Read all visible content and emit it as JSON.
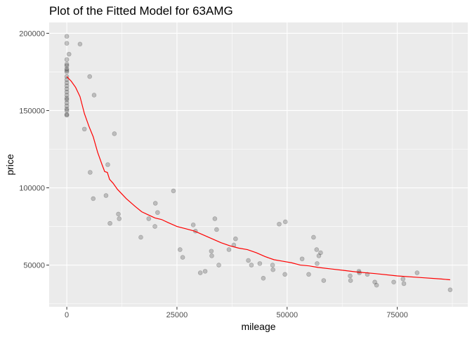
{
  "chart_data": {
    "type": "scatter",
    "title": "Plot of the Fitted Model for 63AMG",
    "xlabel": "mileage",
    "ylabel": "price",
    "xlim": [
      -4000,
      91000
    ],
    "ylim": [
      23000,
      207000
    ],
    "x_ticks": [
      0,
      25000,
      50000,
      75000
    ],
    "x_tick_labels": [
      "0",
      "25000",
      "50000",
      "75000"
    ],
    "y_ticks": [
      50000,
      100000,
      150000,
      200000
    ],
    "y_tick_labels": [
      "50000",
      "100000",
      "150000",
      "200000"
    ],
    "grid": true,
    "legend": "none",
    "colors": {
      "panel": "#ebebeb",
      "grid_major": "#ffffff",
      "points": "#000000",
      "fitted_line": "#ff0000"
    },
    "points": [
      {
        "x": 0,
        "y": 198000
      },
      {
        "x": 0,
        "y": 193500
      },
      {
        "x": 0,
        "y": 183000
      },
      {
        "x": 0,
        "y": 180000
      },
      {
        "x": 0,
        "y": 179000
      },
      {
        "x": 0,
        "y": 177000
      },
      {
        "x": 0,
        "y": 176000
      },
      {
        "x": 0,
        "y": 175000
      },
      {
        "x": 0,
        "y": 172000
      },
      {
        "x": 0,
        "y": 170000
      },
      {
        "x": 0,
        "y": 168000
      },
      {
        "x": 0,
        "y": 166000
      },
      {
        "x": 0,
        "y": 164000
      },
      {
        "x": 0,
        "y": 162000
      },
      {
        "x": 0,
        "y": 160000
      },
      {
        "x": 0,
        "y": 158000
      },
      {
        "x": 0,
        "y": 157000
      },
      {
        "x": 0,
        "y": 155000
      },
      {
        "x": 0,
        "y": 153000
      },
      {
        "x": 0,
        "y": 151000
      },
      {
        "x": 0,
        "y": 150000
      },
      {
        "x": 0,
        "y": 147500
      },
      {
        "x": 0,
        "y": 147000
      },
      {
        "x": 500,
        "y": 186500
      },
      {
        "x": 3000,
        "y": 193000
      },
      {
        "x": 4000,
        "y": 138000
      },
      {
        "x": 5200,
        "y": 172000
      },
      {
        "x": 5300,
        "y": 110000
      },
      {
        "x": 6000,
        "y": 93000
      },
      {
        "x": 6200,
        "y": 160000
      },
      {
        "x": 8900,
        "y": 95000
      },
      {
        "x": 9300,
        "y": 115000
      },
      {
        "x": 9800,
        "y": 77000
      },
      {
        "x": 10800,
        "y": 135000
      },
      {
        "x": 11700,
        "y": 83000
      },
      {
        "x": 11900,
        "y": 80000
      },
      {
        "x": 16800,
        "y": 68000
      },
      {
        "x": 18600,
        "y": 80000
      },
      {
        "x": 20000,
        "y": 75000
      },
      {
        "x": 20100,
        "y": 90000
      },
      {
        "x": 20600,
        "y": 84000
      },
      {
        "x": 24200,
        "y": 98000
      },
      {
        "x": 25700,
        "y": 60000
      },
      {
        "x": 26300,
        "y": 55000
      },
      {
        "x": 28700,
        "y": 76000
      },
      {
        "x": 29200,
        "y": 72000
      },
      {
        "x": 30300,
        "y": 45000
      },
      {
        "x": 31400,
        "y": 46000
      },
      {
        "x": 32800,
        "y": 59000
      },
      {
        "x": 32900,
        "y": 56000
      },
      {
        "x": 33600,
        "y": 80000
      },
      {
        "x": 34000,
        "y": 73000
      },
      {
        "x": 34500,
        "y": 50000
      },
      {
        "x": 36800,
        "y": 60000
      },
      {
        "x": 37900,
        "y": 63000
      },
      {
        "x": 38300,
        "y": 67000
      },
      {
        "x": 41200,
        "y": 53000
      },
      {
        "x": 41900,
        "y": 50000
      },
      {
        "x": 43800,
        "y": 51000
      },
      {
        "x": 44600,
        "y": 41500
      },
      {
        "x": 46700,
        "y": 50000
      },
      {
        "x": 46800,
        "y": 47000
      },
      {
        "x": 48200,
        "y": 76500
      },
      {
        "x": 49500,
        "y": 44000
      },
      {
        "x": 49600,
        "y": 78000
      },
      {
        "x": 53400,
        "y": 54000
      },
      {
        "x": 54900,
        "y": 44000
      },
      {
        "x": 56000,
        "y": 68000
      },
      {
        "x": 56700,
        "y": 60000
      },
      {
        "x": 56800,
        "y": 51000
      },
      {
        "x": 57200,
        "y": 56000
      },
      {
        "x": 57600,
        "y": 58000
      },
      {
        "x": 58300,
        "y": 40000
      },
      {
        "x": 64300,
        "y": 43000
      },
      {
        "x": 64400,
        "y": 40000
      },
      {
        "x": 66300,
        "y": 46000
      },
      {
        "x": 66400,
        "y": 45000
      },
      {
        "x": 68200,
        "y": 44000
      },
      {
        "x": 69900,
        "y": 39000
      },
      {
        "x": 70300,
        "y": 37000
      },
      {
        "x": 74200,
        "y": 39000
      },
      {
        "x": 76300,
        "y": 41000
      },
      {
        "x": 76500,
        "y": 38000
      },
      {
        "x": 79500,
        "y": 45000
      },
      {
        "x": 87000,
        "y": 34000
      }
    ],
    "fitted_line": [
      {
        "x": 0,
        "y": 172000
      },
      {
        "x": 1000,
        "y": 169000
      },
      {
        "x": 2000,
        "y": 165000
      },
      {
        "x": 3000,
        "y": 159000
      },
      {
        "x": 4000,
        "y": 148000
      },
      {
        "x": 5000,
        "y": 140000
      },
      {
        "x": 6000,
        "y": 133000
      },
      {
        "x": 7000,
        "y": 123000
      },
      {
        "x": 8000,
        "y": 115000
      },
      {
        "x": 8600,
        "y": 110500
      },
      {
        "x": 9200,
        "y": 110000
      },
      {
        "x": 9700,
        "y": 105500
      },
      {
        "x": 10500,
        "y": 103000
      },
      {
        "x": 11500,
        "y": 99000
      },
      {
        "x": 13500,
        "y": 93000
      },
      {
        "x": 15500,
        "y": 88000
      },
      {
        "x": 17000,
        "y": 84500
      },
      {
        "x": 18500,
        "y": 82500
      },
      {
        "x": 20000,
        "y": 80500
      },
      {
        "x": 21500,
        "y": 79500
      },
      {
        "x": 23000,
        "y": 77500
      },
      {
        "x": 25000,
        "y": 75000
      },
      {
        "x": 27000,
        "y": 73500
      },
      {
        "x": 29000,
        "y": 72000
      },
      {
        "x": 31000,
        "y": 69500
      },
      {
        "x": 33000,
        "y": 67000
      },
      {
        "x": 35000,
        "y": 64500
      },
      {
        "x": 37000,
        "y": 62500
      },
      {
        "x": 39000,
        "y": 61000
      },
      {
        "x": 41000,
        "y": 60000
      },
      {
        "x": 43000,
        "y": 58000
      },
      {
        "x": 45000,
        "y": 55500
      },
      {
        "x": 47000,
        "y": 53500
      },
      {
        "x": 49000,
        "y": 52500
      },
      {
        "x": 51000,
        "y": 51500
      },
      {
        "x": 53000,
        "y": 50000
      },
      {
        "x": 55000,
        "y": 49500
      },
      {
        "x": 57000,
        "y": 48500
      },
      {
        "x": 60000,
        "y": 47500
      },
      {
        "x": 63000,
        "y": 46500
      },
      {
        "x": 66000,
        "y": 45500
      },
      {
        "x": 70000,
        "y": 44500
      },
      {
        "x": 75000,
        "y": 43000
      },
      {
        "x": 80000,
        "y": 42000
      },
      {
        "x": 85000,
        "y": 41000
      },
      {
        "x": 87000,
        "y": 40500
      }
    ]
  }
}
